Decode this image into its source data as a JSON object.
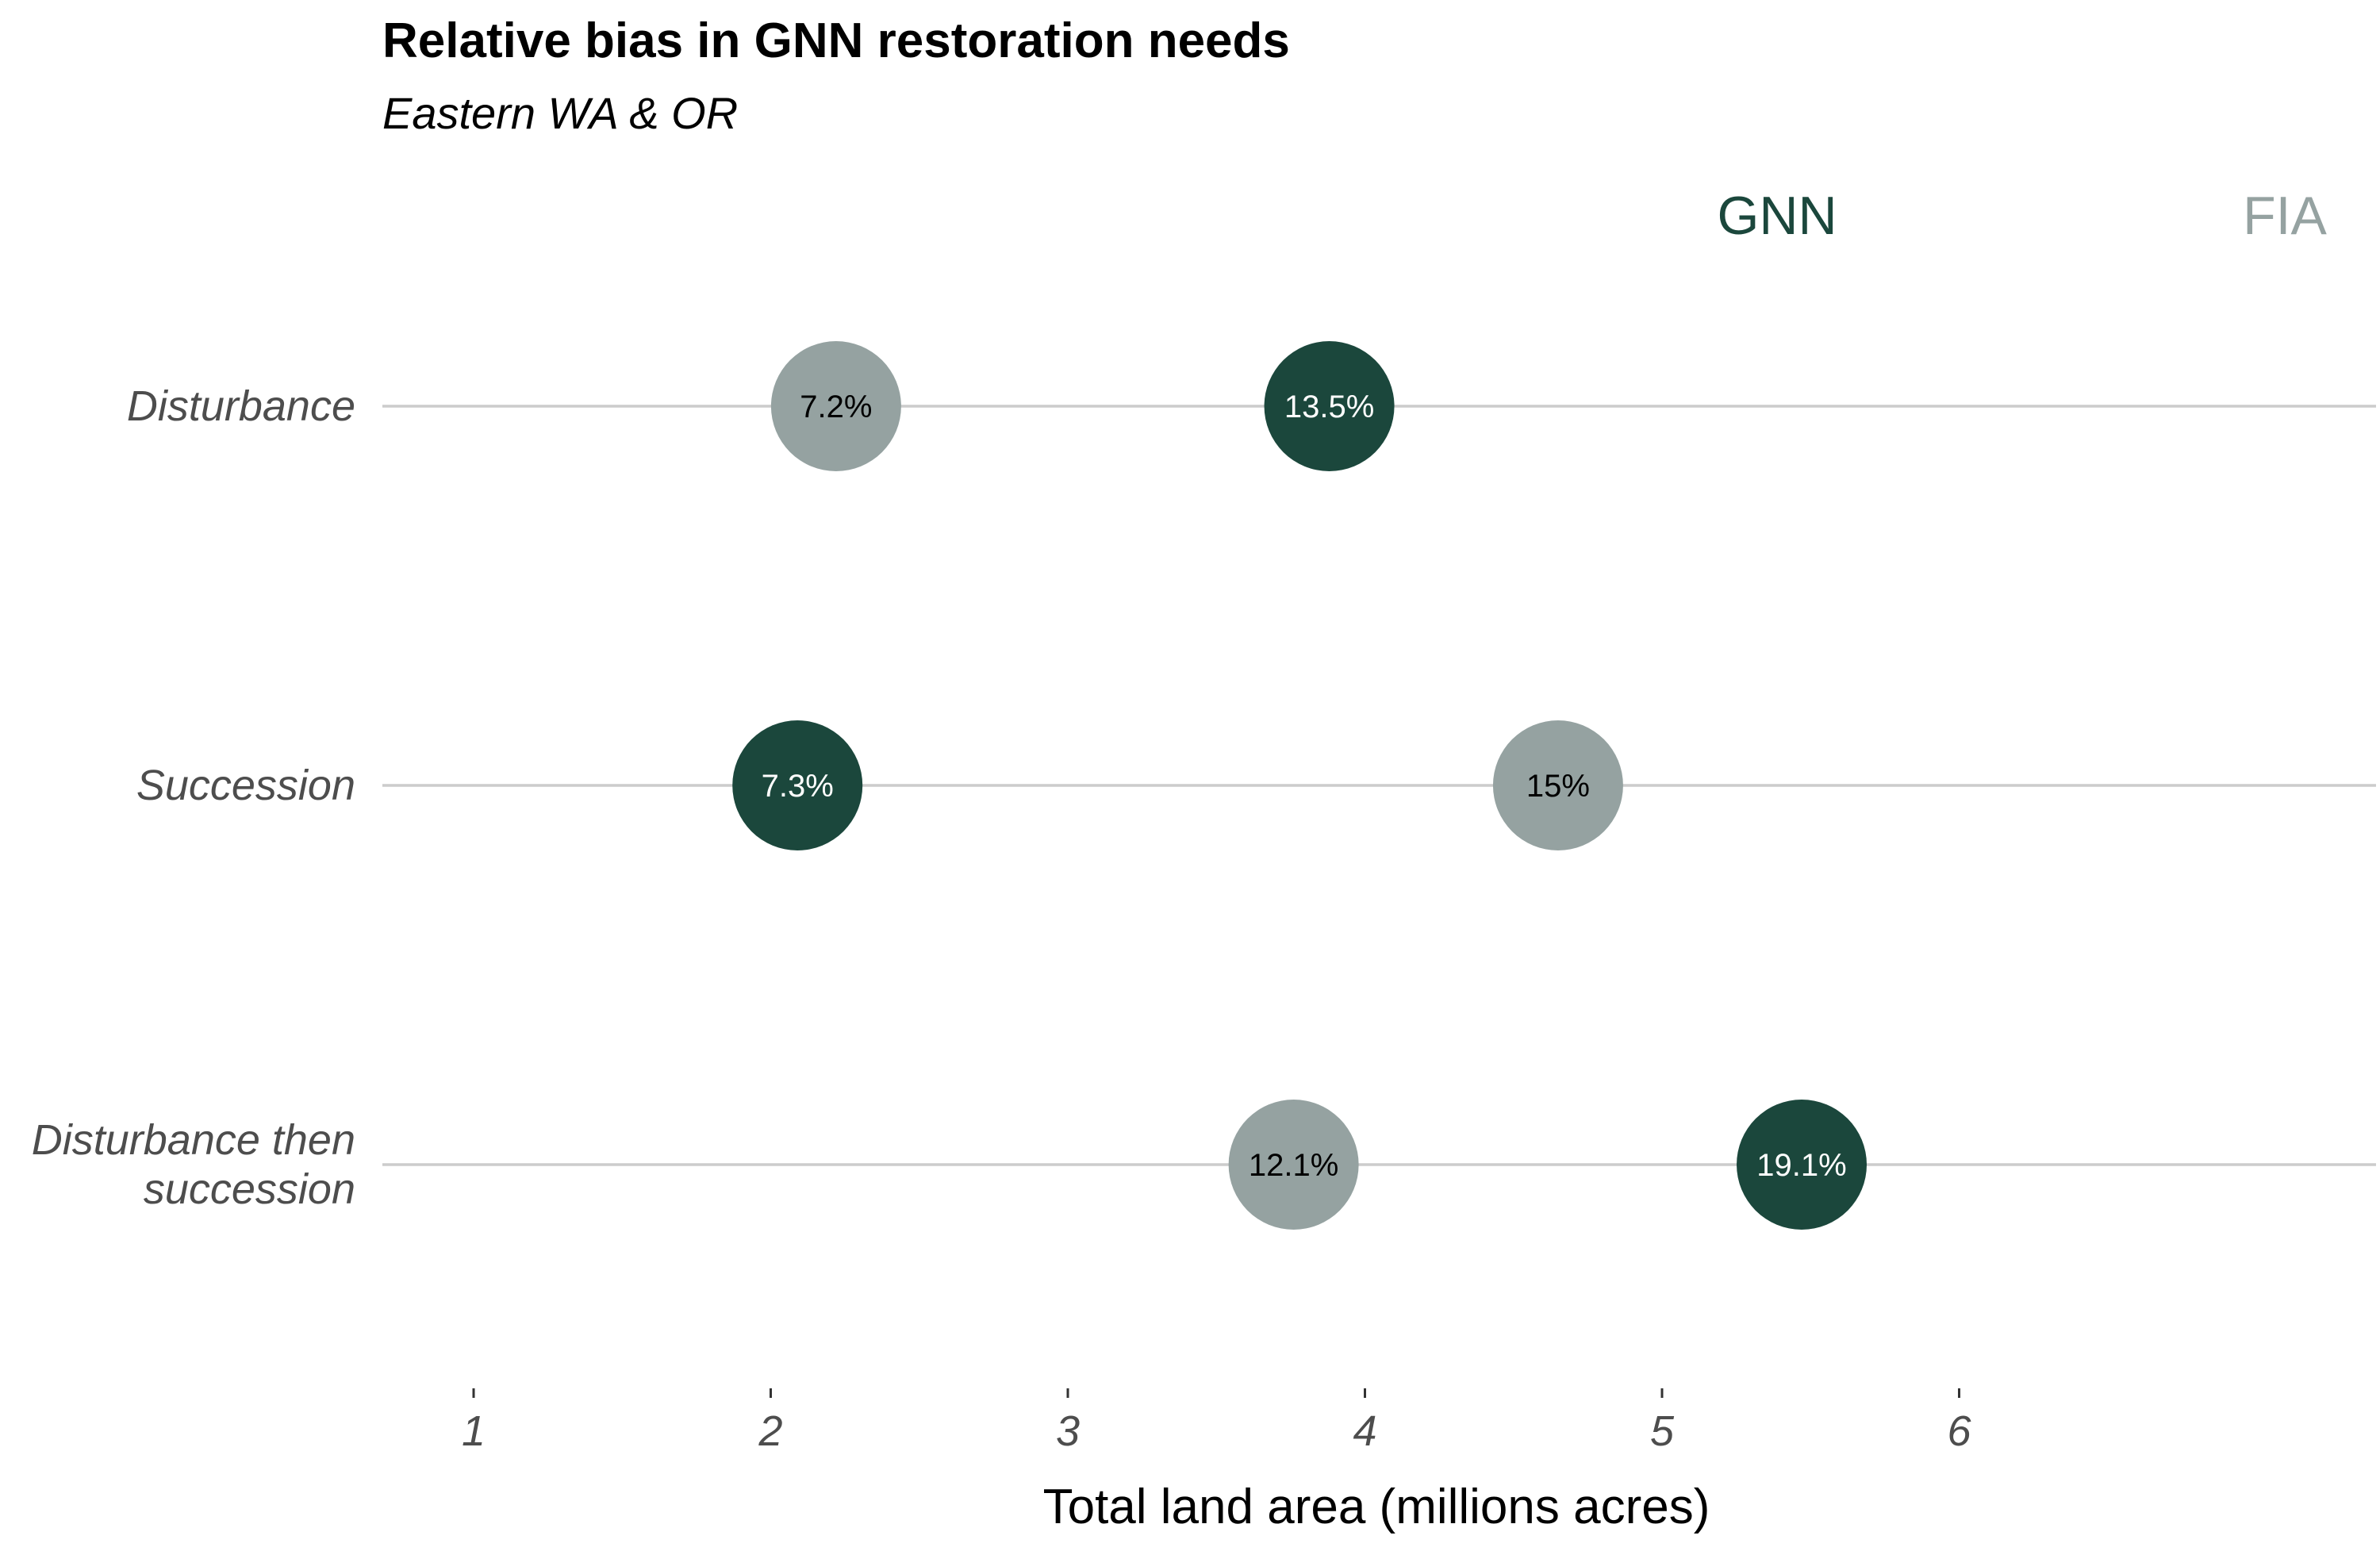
{
  "chart_data": {
    "type": "scatter",
    "title": "Relative bias in GNN restoration needs",
    "subtitle": "Eastern WA & OR",
    "xlabel": "Total land area (millions acres)",
    "ylabel": "",
    "xlim": [
      0.7,
      7.4
    ],
    "x_ticks": [
      1,
      2,
      3,
      4,
      5,
      6
    ],
    "grid": "horizontal",
    "legend_placement": "top-right",
    "categories": [
      [
        "Disturbance"
      ],
      [
        "Succession"
      ],
      [
        "Disturbance then",
        "succession"
      ]
    ],
    "series": [
      {
        "name": "GNN",
        "color": "#1b473c",
        "label_color": "#ffffff",
        "values": [
          3.88,
          2.09,
          5.47
        ],
        "labels": [
          "13.5%",
          "7.3%",
          "19.1%"
        ]
      },
      {
        "name": "FIA",
        "color": "#95a2a1",
        "label_color": "#000000",
        "values": [
          2.22,
          4.65,
          3.76
        ],
        "labels": [
          "7.2%",
          "15%",
          "12.1%"
        ]
      }
    ]
  }
}
